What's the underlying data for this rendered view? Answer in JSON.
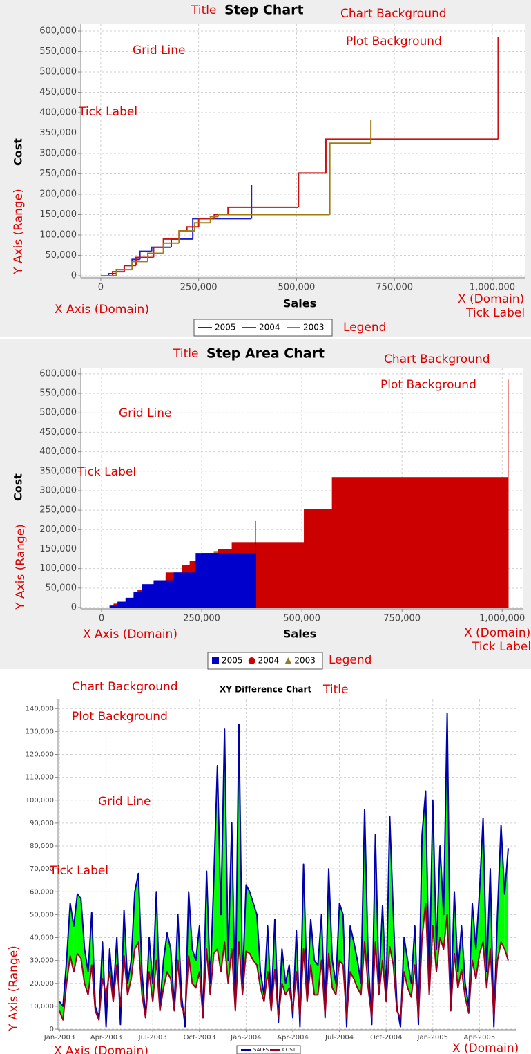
{
  "chart_data": [
    {
      "type": "step",
      "title": "Step Chart",
      "x_label": "Sales",
      "y_label": "Cost",
      "annotations": [
        "Title",
        "Chart Background",
        "Plot Background",
        "Grid Line",
        "Tick Label",
        "Y Axis (Range)",
        "X Axis (Domain)",
        "X (Domain)",
        "Tick Label",
        "Legend"
      ],
      "xlim": [
        -51000,
        1083000
      ],
      "ylim": [
        0,
        617000
      ],
      "xticks": [
        0,
        {
          "value": 250000,
          "label": "250,000"
        },
        {
          "value": 500000,
          "label": "500,000"
        },
        {
          "value": 750000,
          "label": "750,000"
        },
        {
          "value": 1000000,
          "label": "1,000,000"
        }
      ],
      "yticks": [
        0,
        {
          "value": 50000,
          "label": "50,000"
        },
        {
          "value": 100000,
          "label": "100,000"
        },
        {
          "value": 150000,
          "label": "150,000"
        },
        {
          "value": 200000,
          "label": "200,000"
        },
        {
          "value": 250000,
          "label": "250,000"
        },
        {
          "value": 300000,
          "label": "300,000"
        },
        {
          "value": 350000,
          "label": "350,000"
        },
        {
          "value": 400000,
          "label": "400,000"
        },
        {
          "value": 450000,
          "label": "450,000"
        },
        {
          "value": 500000,
          "label": "500,000"
        },
        {
          "value": 550000,
          "label": "550,000"
        },
        {
          "value": 600000,
          "label": "600,000"
        }
      ],
      "grid": true,
      "legend": "bottom",
      "series": [
        {
          "name": "2005",
          "color": "#1f1fc8",
          "x": [
            0,
            20000,
            40000,
            60000,
            80000,
            100000,
            130000,
            180000,
            235000,
            385000,
            385000
          ],
          "values": [
            0,
            5000,
            15000,
            25000,
            40000,
            60000,
            70000,
            90000,
            140000,
            140000,
            222000
          ]
        },
        {
          "name": "2004",
          "color": "#cc1111",
          "x": [
            0,
            30000,
            60000,
            90000,
            135000,
            160000,
            200000,
            220000,
            250000,
            290000,
            325000,
            505000,
            575000,
            1015000
          ],
          "values": [
            0,
            10000,
            25000,
            45000,
            70000,
            90000,
            110000,
            120000,
            140000,
            150000,
            168000,
            252000,
            335000,
            585000
          ]
        },
        {
          "name": "2003",
          "color": "#a07b10",
          "x": [
            0,
            40000,
            80000,
            120000,
            160000,
            200000,
            240000,
            280000,
            300000,
            585000,
            690000
          ],
          "values": [
            0,
            15000,
            35000,
            55000,
            80000,
            110000,
            130000,
            145000,
            150000,
            325000,
            383000
          ]
        }
      ]
    },
    {
      "type": "step_area",
      "title": "Step Area Chart",
      "x_label": "Sales",
      "y_label": "Cost",
      "annotations": [
        "Title",
        "Chart Background",
        "Plot Background",
        "Grid Line",
        "Tick Label",
        "Y Axis (Range)",
        "X Axis (Domain)",
        "X (Domain)",
        "Tick Label",
        "Legend"
      ],
      "xlim": [
        -51700,
        1053000
      ],
      "ylim": [
        0,
        614000
      ],
      "xticks": [
        0,
        {
          "value": 250000,
          "label": "250,000"
        },
        {
          "value": 500000,
          "label": "500,000"
        },
        {
          "value": 750000,
          "label": "750,000"
        },
        {
          "value": 1000000,
          "label": "1,000,000"
        }
      ],
      "yticks": [
        0,
        {
          "value": 50000,
          "label": "50,000"
        },
        {
          "value": 100000,
          "label": "100,000"
        },
        {
          "value": 150000,
          "label": "150,000"
        },
        {
          "value": 200000,
          "label": "200,000"
        },
        {
          "value": 250000,
          "label": "250,000"
        },
        {
          "value": 300000,
          "label": "300,000"
        },
        {
          "value": 350000,
          "label": "350,000"
        },
        {
          "value": 400000,
          "label": "400,000"
        },
        {
          "value": 450000,
          "label": "450,000"
        },
        {
          "value": 500000,
          "label": "500,000"
        },
        {
          "value": 550000,
          "label": "550,000"
        },
        {
          "value": 600000,
          "label": "600,000"
        }
      ],
      "grid": true,
      "legend": "bottom",
      "series": [
        {
          "name": "2005",
          "color": "#0000cc",
          "x": [
            0,
            20000,
            40000,
            60000,
            80000,
            100000,
            130000,
            180000,
            235000,
            385000,
            385000
          ],
          "values": [
            0,
            5000,
            15000,
            25000,
            40000,
            60000,
            70000,
            90000,
            140000,
            140000,
            222000
          ]
        },
        {
          "name": "2004",
          "color": "#cc0000",
          "x": [
            0,
            30000,
            60000,
            90000,
            135000,
            160000,
            200000,
            220000,
            250000,
            290000,
            325000,
            505000,
            575000,
            1015000
          ],
          "values": [
            0,
            10000,
            25000,
            45000,
            70000,
            90000,
            110000,
            120000,
            140000,
            150000,
            168000,
            252000,
            335000,
            585000
          ]
        },
        {
          "name": "2003",
          "color": "#997a2a",
          "x": [
            0,
            40000,
            80000,
            120000,
            160000,
            200000,
            240000,
            280000,
            300000,
            585000,
            690000
          ],
          "values": [
            0,
            15000,
            35000,
            55000,
            80000,
            110000,
            130000,
            145000,
            150000,
            325000,
            383000
          ]
        }
      ]
    },
    {
      "type": "difference",
      "title": "XY Difference Chart",
      "annotations": [
        "Chart Background",
        "Title",
        "Plot Background",
        "Grid Line",
        "Tick Label",
        "Y Axis (Range)",
        "X Axis (Domain)",
        "X (Domain)"
      ],
      "ylim": [
        0,
        144000
      ],
      "yticks": [
        0,
        {
          "value": 10000,
          "label": "10,000"
        },
        {
          "value": 20000,
          "label": "20,000"
        },
        {
          "value": 30000,
          "label": "30,000"
        },
        {
          "value": 40000,
          "label": "40,000"
        },
        {
          "value": 50000,
          "label": "50,000"
        },
        {
          "value": 60000,
          "label": "60,000"
        },
        {
          "value": 70000,
          "label": "70,000"
        },
        {
          "value": 80000,
          "label": "80,000"
        },
        {
          "value": 90000,
          "label": "90,000"
        },
        {
          "value": 100000,
          "label": "100,000"
        },
        {
          "value": 110000,
          "label": "110,000"
        },
        {
          "value": 120000,
          "label": "120,000"
        },
        {
          "value": 130000,
          "label": "130,000"
        },
        {
          "value": 140000,
          "label": "140,000"
        }
      ],
      "grid": true,
      "legend": "bottom",
      "positive_color": "#00ff00",
      "negative_color": "#ff0000",
      "categories": [
        "Jan-2003",
        null,
        null,
        null,
        null,
        null,
        null,
        null,
        null,
        null,
        null,
        null,
        null,
        "Apr-2003",
        null,
        null,
        null,
        null,
        null,
        null,
        null,
        null,
        null,
        null,
        null,
        null,
        "Jul-2003",
        null,
        null,
        null,
        null,
        null,
        null,
        null,
        null,
        null,
        null,
        null,
        null,
        "Oct-2003",
        null,
        null,
        null,
        null,
        null,
        null,
        null,
        null,
        null,
        null,
        null,
        null,
        "Jan-2004",
        null,
        null,
        null,
        null,
        null,
        null,
        null,
        null,
        null,
        null,
        null,
        null,
        "Apr-2004",
        null,
        null,
        null,
        null,
        null,
        null,
        null,
        null,
        null,
        null,
        null,
        null,
        "Jul-2004",
        null,
        null,
        null,
        null,
        null,
        null,
        null,
        null,
        null,
        null,
        null,
        null,
        "Oct-2004",
        null,
        null,
        null,
        null,
        null,
        null,
        null,
        null,
        null,
        null,
        null,
        null,
        "Jan-2005",
        null,
        null,
        null,
        null,
        null,
        null,
        null,
        null,
        null,
        null,
        null,
        null,
        "Apr-2005",
        null,
        null,
        null,
        null,
        null,
        null,
        null,
        null
      ],
      "series": [
        {
          "name": "SALES",
          "color": "#0000aa",
          "values": [
            12000,
            10000,
            30000,
            55000,
            45000,
            59000,
            57000,
            35000,
            25000,
            51000,
            10000,
            5000,
            38000,
            1000,
            35000,
            15000,
            40000,
            2000,
            52000,
            20000,
            30000,
            60000,
            68000,
            25000,
            5000,
            40000,
            20000,
            60000,
            10000,
            30000,
            42000,
            35000,
            10000,
            50000,
            15000,
            1000,
            60000,
            35000,
            30000,
            45000,
            5000,
            69000,
            20000,
            65000,
            115000,
            50000,
            131000,
            30000,
            90000,
            10000,
            133000,
            20000,
            63000,
            60000,
            55000,
            50000,
            25000,
            15000,
            45000,
            10000,
            48000,
            3000,
            35000,
            20000,
            28000,
            5000,
            43000,
            1000,
            72000,
            15000,
            48000,
            30000,
            28000,
            50000,
            5000,
            70000,
            30000,
            20000,
            55000,
            50000,
            1000,
            45000,
            38000,
            30000,
            20000,
            96000,
            30000,
            2000,
            85000,
            20000,
            54000,
            15000,
            93000,
            50000,
            10000,
            1000,
            40000,
            30000,
            20000,
            45000,
            2000,
            85000,
            104000,
            20000,
            100000,
            35000,
            80000,
            50000,
            138000,
            10000,
            60000,
            25000,
            45000,
            20000,
            10000,
            55000,
            35000,
            60000,
            92000,
            25000,
            70000,
            1000,
            50000,
            89000,
            59000,
            79000
          ]
        },
        {
          "name": "COST",
          "color": "#990022",
          "values": [
            8000,
            4000,
            20000,
            32000,
            25000,
            33000,
            31000,
            20000,
            15000,
            28000,
            8000,
            4000,
            22000,
            15000,
            25000,
            12000,
            28000,
            10000,
            32000,
            15000,
            22000,
            35000,
            38000,
            15000,
            5000,
            25000,
            12000,
            30000,
            8000,
            18000,
            25000,
            22000,
            8000,
            30000,
            10000,
            6000,
            32000,
            20000,
            18000,
            25000,
            5000,
            35000,
            15000,
            33000,
            35000,
            25000,
            38000,
            20000,
            35000,
            8000,
            38000,
            15000,
            34000,
            33000,
            30000,
            28000,
            18000,
            12000,
            25000,
            8000,
            26000,
            5000,
            20000,
            15000,
            18000,
            8000,
            25000,
            5000,
            35000,
            12000,
            28000,
            15000,
            15000,
            30000,
            6000,
            33000,
            18000,
            15000,
            30000,
            28000,
            5000,
            25000,
            22000,
            18000,
            15000,
            38000,
            18000,
            5000,
            38000,
            15000,
            30000,
            12000,
            36000,
            28000,
            8000,
            5000,
            25000,
            18000,
            14000,
            28000,
            5000,
            40000,
            55000,
            15000,
            45000,
            25000,
            40000,
            35000,
            50000,
            8000,
            33000,
            18000,
            26000,
            14000,
            7000,
            30000,
            22000,
            33000,
            38000,
            18000,
            35000,
            5000,
            30000,
            38000,
            35000,
            30000
          ]
        }
      ]
    }
  ]
}
